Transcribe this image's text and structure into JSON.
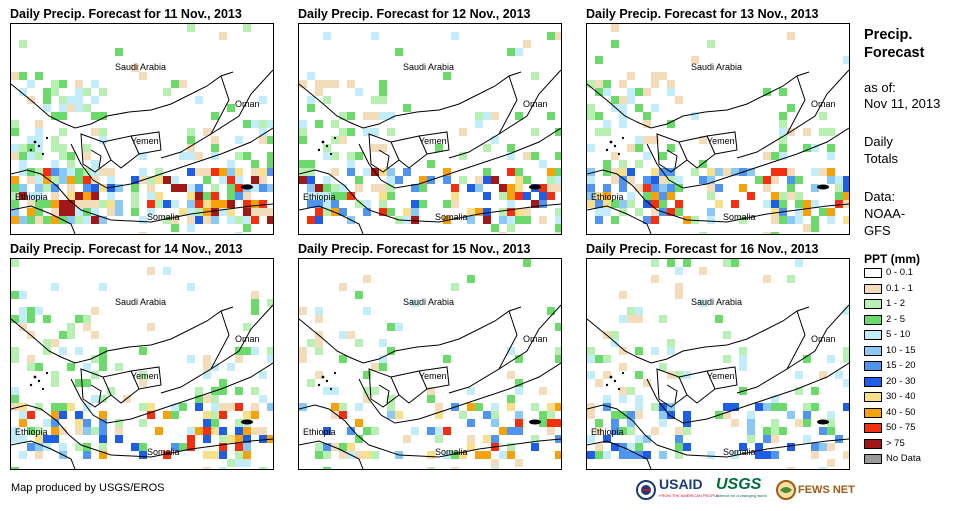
{
  "panels": [
    {
      "title": "Daily Precip. Forecast for 11 Nov., 2013"
    },
    {
      "title": "Daily Precip. Forecast for 12 Nov., 2013"
    },
    {
      "title": "Daily Precip. Forecast for 13 Nov., 2013"
    },
    {
      "title": "Daily Precip. Forecast for 14 Nov., 2013"
    },
    {
      "title": "Daily Precip. Forecast for 15 Nov., 2013"
    },
    {
      "title": "Daily Precip. Forecast for 16 Nov., 2013"
    }
  ],
  "map_labels": {
    "saudi": "Saudi Arabia",
    "oman": "Oman",
    "yemen": "Yemen",
    "ethiopia": "Ethiopia",
    "somalia": "Somalia"
  },
  "sidebar": {
    "heading_line1": "Precip.",
    "heading_line2": "Forecast",
    "asof_label": "as of:",
    "asof_date": "Nov 11, 2013",
    "totals_line1": "Daily",
    "totals_line2": "Totals",
    "data_line1": "Data:",
    "data_line2": "NOAA-",
    "data_line3": "GFS"
  },
  "legend": {
    "title": "PPT (mm)",
    "items": [
      {
        "label": "0 - 0.1",
        "color": "#ffffff"
      },
      {
        "label": "0.1 - 1",
        "color": "#f2dcb9"
      },
      {
        "label": "1 - 2",
        "color": "#b7f0b2"
      },
      {
        "label": "2 - 5",
        "color": "#6bd96b"
      },
      {
        "label": "5 - 10",
        "color": "#c2ecf7"
      },
      {
        "label": "10 - 15",
        "color": "#8cc8f4"
      },
      {
        "label": "15 - 20",
        "color": "#4f95f0"
      },
      {
        "label": "20 - 30",
        "color": "#1e5ee6"
      },
      {
        "label": "30 - 40",
        "color": "#f8e08a"
      },
      {
        "label": "40 - 50",
        "color": "#f5a20c"
      },
      {
        "label": "50 - 75",
        "color": "#f03010"
      },
      {
        "label": "> 75",
        "color": "#a01818"
      },
      {
        "label": "No Data",
        "color": "#9a9a9a"
      }
    ]
  },
  "credit": "Map produced by USGS/EROS",
  "logos": {
    "usaid": "USAID",
    "usaid_tag": "FROM THE AMERICAN PEOPLE",
    "usgs": "USGS",
    "usgs_tag": "science for a changing world",
    "fews": "FEWS NET"
  }
}
